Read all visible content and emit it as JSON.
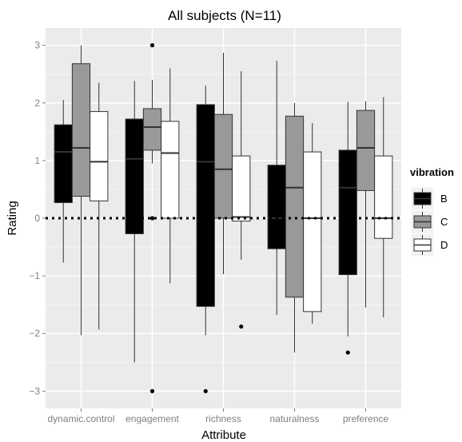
{
  "chart_data": {
    "type": "boxplot",
    "title": "All subjects (N=11)",
    "xlabel": "Attribute",
    "ylabel": "Rating",
    "ylim": [
      -3.3,
      3.3
    ],
    "yticks": [
      -3,
      -2,
      -1,
      0,
      1,
      2,
      3
    ],
    "categories": [
      "dynamic.control",
      "engagement",
      "richness",
      "naturalness",
      "preference"
    ],
    "reference_line": 0,
    "grid": true,
    "legend": {
      "title": "vibration",
      "position": "right"
    },
    "series": [
      {
        "name": "B",
        "fill": "#000000",
        "boxes": [
          {
            "whisker_low": -0.77,
            "q1": 0.27,
            "median": 1.15,
            "q3": 1.62,
            "whisker_high": 2.05,
            "outliers": []
          },
          {
            "whisker_low": -2.5,
            "q1": -0.27,
            "median": 1.03,
            "q3": 1.72,
            "whisker_high": 2.38,
            "outliers": [
              0
            ]
          },
          {
            "whisker_low": -2.03,
            "q1": -1.53,
            "median": 0.98,
            "q3": 1.97,
            "whisker_high": 2.3,
            "outliers": [
              -3
            ]
          },
          {
            "whisker_low": -1.68,
            "q1": -0.53,
            "median": 0.0,
            "q3": 0.92,
            "whisker_high": 2.73,
            "outliers": []
          },
          {
            "whisker_low": -2.05,
            "q1": -0.98,
            "median": 0.53,
            "q3": 1.18,
            "whisker_high": 2.02,
            "outliers": [
              -2.33
            ]
          }
        ]
      },
      {
        "name": "C",
        "fill": "#999999",
        "boxes": [
          {
            "whisker_low": -2.03,
            "q1": 0.38,
            "median": 1.22,
            "q3": 2.68,
            "whisker_high": 3.0,
            "outliers": []
          },
          {
            "whisker_low": 0.95,
            "q1": 1.18,
            "median": 1.58,
            "q3": 1.9,
            "whisker_high": 2.4,
            "outliers": [
              3,
              0,
              -3
            ]
          },
          {
            "whisker_low": -0.97,
            "q1": 0.0,
            "median": 0.85,
            "q3": 1.8,
            "whisker_high": 2.87,
            "outliers": []
          },
          {
            "whisker_low": -2.33,
            "q1": -1.37,
            "median": 0.53,
            "q3": 1.77,
            "whisker_high": 2.0,
            "outliers": []
          },
          {
            "whisker_low": -1.55,
            "q1": 0.48,
            "median": 1.22,
            "q3": 1.87,
            "whisker_high": 2.03,
            "outliers": []
          }
        ]
      },
      {
        "name": "D",
        "fill": "#ffffff",
        "boxes": [
          {
            "whisker_low": -1.93,
            "q1": 0.3,
            "median": 0.98,
            "q3": 1.85,
            "whisker_high": 2.35,
            "outliers": []
          },
          {
            "whisker_low": -1.13,
            "q1": 0.0,
            "median": 1.13,
            "q3": 1.68,
            "whisker_high": 2.6,
            "outliers": []
          },
          {
            "whisker_low": -0.72,
            "q1": -0.05,
            "median": 0.02,
            "q3": 1.08,
            "whisker_high": 2.55,
            "outliers": [
              -1.88
            ]
          },
          {
            "whisker_low": -1.83,
            "q1": -1.62,
            "median": 0.0,
            "q3": 1.15,
            "whisker_high": 1.65,
            "outliers": []
          },
          {
            "whisker_low": -1.72,
            "q1": -0.35,
            "median": 0.0,
            "q3": 1.08,
            "whisker_high": 2.1,
            "outliers": []
          }
        ]
      }
    ]
  }
}
